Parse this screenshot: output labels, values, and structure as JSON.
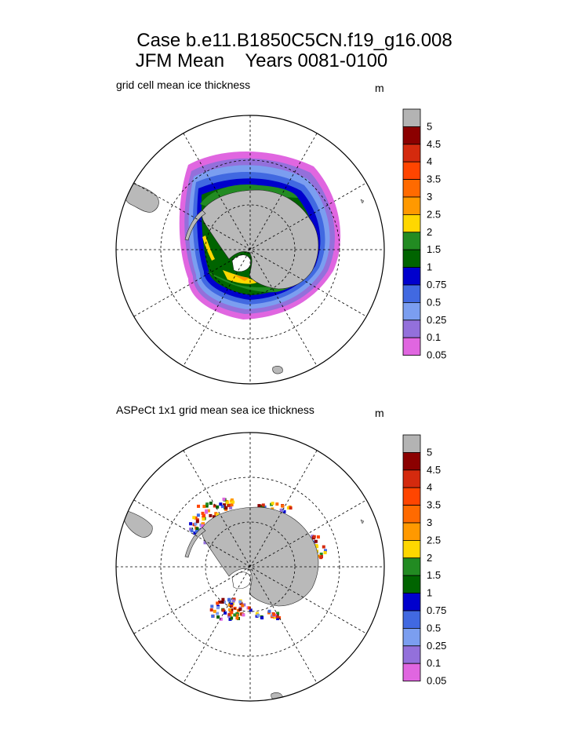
{
  "title": {
    "line1": "Case b.e11.B1850C5CN.f19_g16.008",
    "line2": "JFM Mean    Years 0081-0100"
  },
  "panels": [
    {
      "subtitle": "grid cell mean ice thickness",
      "unit": "m"
    },
    {
      "subtitle": "ASPeCt 1x1 grid mean sea ice thickness",
      "unit": "m"
    }
  ],
  "legend": {
    "labels": [
      "5",
      "4.5",
      "4",
      "3.5",
      "3",
      "2.5",
      "2",
      "1.5",
      "1",
      "0.75",
      "0.5",
      "0.25",
      "0.1",
      "0.05"
    ],
    "colors": [
      "#b3b3b3",
      "#8b0000",
      "#d42a0e",
      "#ff4500",
      "#ff6a00",
      "#ff9900",
      "#ffd700",
      "#228b22",
      "#006400",
      "#0000cd",
      "#4169e1",
      "#7b9ef0",
      "#9370db",
      "#e066e0"
    ]
  },
  "colors": {
    "land": "#b9b9b9",
    "grid": "#000000"
  }
}
